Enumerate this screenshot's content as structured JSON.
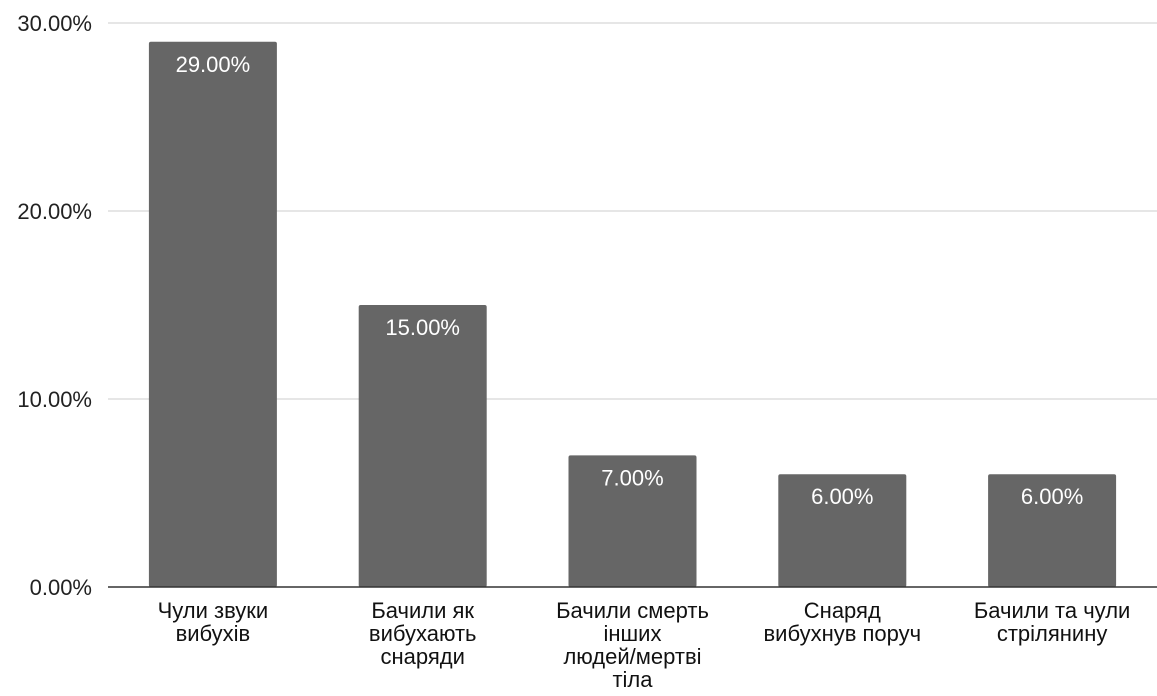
{
  "chart_data": {
    "type": "bar",
    "categories": [
      [
        "Чули звуки",
        "вибухів"
      ],
      [
        "Бачили як",
        "вибухають",
        "снаряди"
      ],
      [
        "Бачили смерть",
        "інших",
        "людей/мертві",
        "тіла"
      ],
      [
        "Снаряд",
        "вибухнув поруч"
      ],
      [
        "Бачили та чули",
        "стрілянину"
      ]
    ],
    "values": [
      29,
      15,
      7,
      6,
      6
    ],
    "data_labels": [
      "29.00%",
      "15.00%",
      "7.00%",
      "6.00%",
      "6.00%"
    ],
    "yticks": [
      {
        "value": 0,
        "label": "0.00%"
      },
      {
        "value": 10,
        "label": "10.00%"
      },
      {
        "value": 20,
        "label": "20.00%"
      },
      {
        "value": 30,
        "label": "30.00%"
      }
    ],
    "ylim": [
      0,
      30
    ],
    "grid": true,
    "legend": "none",
    "colors": {
      "bar": "#666666",
      "grid": "#cccccc",
      "axis": "#333333",
      "data_label_text": "#ffffff"
    }
  }
}
